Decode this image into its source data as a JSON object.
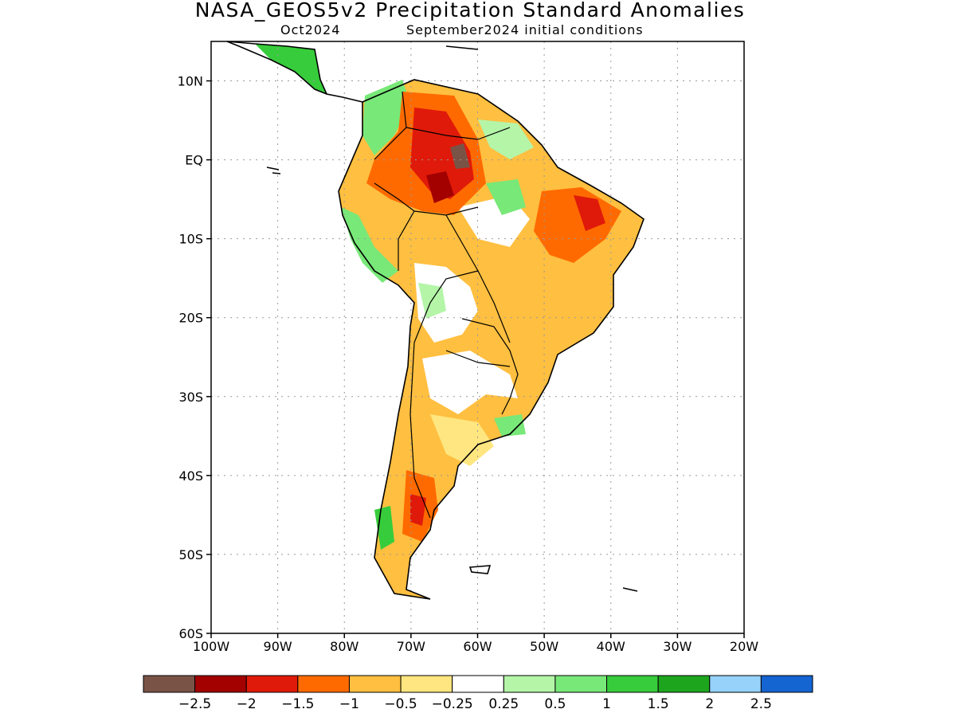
{
  "title": "NASA_GEOS5v2 Precipitation Standard Anomalies",
  "subtitle_left": "Oct2024",
  "subtitle_right": "September2024 initial conditions",
  "map": {
    "region": "South America",
    "lon_range": [
      -100,
      -20
    ],
    "lat_range": [
      -60,
      15
    ],
    "lat_ticks": [
      {
        "value": 10,
        "label": "10N"
      },
      {
        "value": 0,
        "label": "EQ"
      },
      {
        "value": -10,
        "label": "10S"
      },
      {
        "value": -20,
        "label": "20S"
      },
      {
        "value": -30,
        "label": "30S"
      },
      {
        "value": -40,
        "label": "40S"
      },
      {
        "value": -50,
        "label": "50S"
      },
      {
        "value": -60,
        "label": "60S"
      }
    ],
    "lon_ticks": [
      {
        "value": -100,
        "label": "100W"
      },
      {
        "value": -90,
        "label": "90W"
      },
      {
        "value": -80,
        "label": "80W"
      },
      {
        "value": -70,
        "label": "70W"
      },
      {
        "value": -60,
        "label": "60W"
      },
      {
        "value": -50,
        "label": "50W"
      },
      {
        "value": -40,
        "label": "40W"
      },
      {
        "value": -30,
        "label": "30W"
      },
      {
        "value": -20,
        "label": "20W"
      }
    ],
    "grid": "dotted"
  },
  "colorbar": {
    "colors": [
      "#7a5347",
      "#a30000",
      "#e01a0a",
      "#ff6a00",
      "#ffbf40",
      "#ffe680",
      "#ffffff",
      "#b4f5a8",
      "#78e878",
      "#37cc3c",
      "#1ea51e",
      "#96d2fa",
      "#1464d2"
    ],
    "labels": [
      "-2.5",
      "-2",
      "-1.5",
      "-1",
      "-0.5",
      "-0.25",
      "0.25",
      "0.5",
      "1",
      "1.5",
      "2",
      "2.5"
    ]
  }
}
